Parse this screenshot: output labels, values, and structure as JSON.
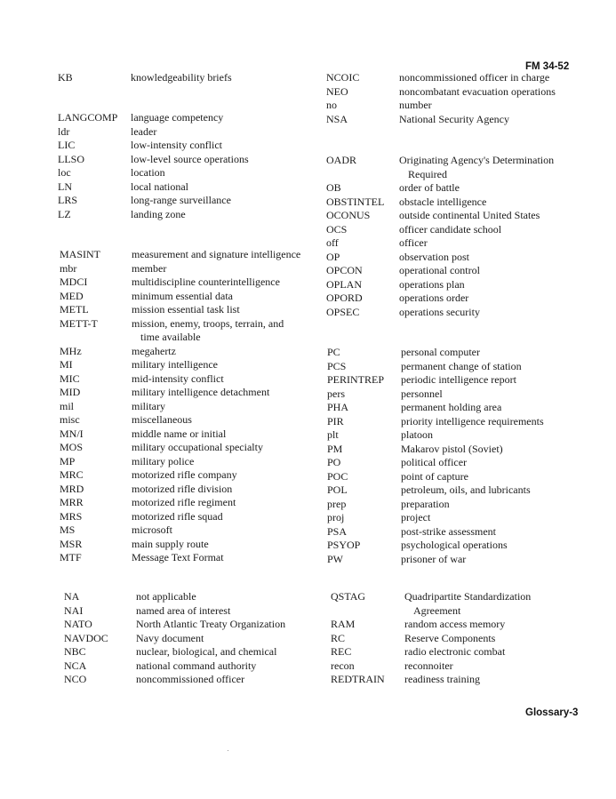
{
  "header": {
    "title": "FM 34-52"
  },
  "footer": {
    "page": "Glossary-3"
  },
  "blocks": [
    {
      "id": "k",
      "entries": [
        {
          "abbr": "KB",
          "def": "knowledgeability briefs"
        }
      ]
    },
    {
      "id": "l",
      "entries": [
        {
          "abbr": "LANGCOMP",
          "def": "language competency"
        },
        {
          "abbr": "ldr",
          "def": "leader"
        },
        {
          "abbr": "LIC",
          "def": "low-intensity conflict"
        },
        {
          "abbr": "LLSO",
          "def": "low-level source operations"
        },
        {
          "abbr": "loc",
          "def": "location"
        },
        {
          "abbr": "LN",
          "def": "local national"
        },
        {
          "abbr": "LRS",
          "def": "long-range surveillance"
        },
        {
          "abbr": "LZ",
          "def": "landing zone"
        }
      ]
    },
    {
      "id": "m",
      "entries": [
        {
          "abbr": "MASINT",
          "def": "measurement and signature intelligence"
        },
        {
          "abbr": "mbr",
          "def": "member"
        },
        {
          "abbr": "MDCI",
          "def": "multidiscipline counterintelligence"
        },
        {
          "abbr": "MED",
          "def": "minimum essential data"
        },
        {
          "abbr": "METL",
          "def": "mission essential task list"
        },
        {
          "abbr": "METT-T",
          "def": "mission, enemy, troops, terrain, and",
          "cont": "time available"
        },
        {
          "abbr": "MHz",
          "def": "megahertz"
        },
        {
          "abbr": "MI",
          "def": "military intelligence"
        },
        {
          "abbr": "MIC",
          "def": "mid-intensity conflict"
        },
        {
          "abbr": "MID",
          "def": "military intelligence detachment"
        },
        {
          "abbr": "mil",
          "def": "military"
        },
        {
          "abbr": "misc",
          "def": "miscellaneous"
        },
        {
          "abbr": "MN/I",
          "def": "middle name or initial"
        },
        {
          "abbr": "MOS",
          "def": "military occupational specialty"
        },
        {
          "abbr": "MP",
          "def": "military police"
        },
        {
          "abbr": "MRC",
          "def": "motorized rifle company"
        },
        {
          "abbr": "MRD",
          "def": "motorized rifle division"
        },
        {
          "abbr": "MRR",
          "def": "motorized rifle regiment"
        },
        {
          "abbr": "MRS",
          "def": "motorized rifle squad"
        },
        {
          "abbr": "MS",
          "def": "microsoft"
        },
        {
          "abbr": "MSR",
          "def": "main supply route"
        },
        {
          "abbr": "MTF",
          "def": "Message Text Format"
        }
      ]
    },
    {
      "id": "n1",
      "entries": [
        {
          "abbr": "NA",
          "def": "not applicable"
        },
        {
          "abbr": "NAI",
          "def": "named area of interest"
        },
        {
          "abbr": "NATO",
          "def": "North Atlantic Treaty Organization"
        },
        {
          "abbr": "NAVDOC",
          "def": "Navy document"
        },
        {
          "abbr": "NBC",
          "def": "nuclear, biological, and chemical"
        },
        {
          "abbr": "NCA",
          "def": "national command authority"
        },
        {
          "abbr": "NCO",
          "def": "noncommissioned officer"
        }
      ]
    },
    {
      "id": "n2",
      "entries": [
        {
          "abbr": "NCOIC",
          "def": "noncommissioned officer in charge"
        },
        {
          "abbr": "NEO",
          "def": "noncombatant evacuation operations"
        },
        {
          "abbr": "no",
          "def": "number"
        },
        {
          "abbr": "NSA",
          "def": "National Security Agency"
        }
      ]
    },
    {
      "id": "o",
      "entries": [
        {
          "abbr": "OADR",
          "def": "Originating Agency's Determination",
          "cont": "Required"
        },
        {
          "abbr": "OB",
          "def": "order of battle"
        },
        {
          "abbr": "OBSTINTEL",
          "def": "obstacle intelligence"
        },
        {
          "abbr": "OCONUS",
          "def": "outside continental United States"
        },
        {
          "abbr": "OCS",
          "def": "officer candidate school"
        },
        {
          "abbr": "off",
          "def": "officer"
        },
        {
          "abbr": "OP",
          "def": "observation post"
        },
        {
          "abbr": "OPCON",
          "def": "operational control"
        },
        {
          "abbr": "OPLAN",
          "def": "operations plan"
        },
        {
          "abbr": "OPORD",
          "def": "operations order"
        },
        {
          "abbr": "OPSEC",
          "def": "operations security"
        }
      ]
    },
    {
      "id": "p",
      "entries": [
        {
          "abbr": "PC",
          "def": "personal computer"
        },
        {
          "abbr": "PCS",
          "def": "permanent change of station"
        },
        {
          "abbr": "PERINTREP",
          "def": "periodic intelligence report"
        },
        {
          "abbr": "pers",
          "def": "personnel"
        },
        {
          "abbr": "PHA",
          "def": "permanent holding area"
        },
        {
          "abbr": "PIR",
          "def": "priority intelligence requirements"
        },
        {
          "abbr": "plt",
          "def": "platoon"
        },
        {
          "abbr": "PM",
          "def": "Makarov pistol (Soviet)"
        },
        {
          "abbr": "PO",
          "def": "political officer"
        },
        {
          "abbr": "POC",
          "def": "point of capture"
        },
        {
          "abbr": "POL",
          "def": "petroleum, oils, and lubricants"
        },
        {
          "abbr": "prep",
          "def": "preparation"
        },
        {
          "abbr": "proj",
          "def": "project"
        },
        {
          "abbr": "PSA",
          "def": "post-strike assessment"
        },
        {
          "abbr": "PSYOP",
          "def": "psychological operations"
        },
        {
          "abbr": "PW",
          "def": "prisoner of war"
        }
      ]
    },
    {
      "id": "qr",
      "entries": [
        {
          "abbr": "QSTAG",
          "def": "Quadripartite Standardization",
          "cont": "Agreement"
        },
        {
          "abbr": "RAM",
          "def": "random access memory"
        },
        {
          "abbr": "RC",
          "def": "Reserve Components"
        },
        {
          "abbr": "REC",
          "def": "radio electronic combat"
        },
        {
          "abbr": "recon",
          "def": "reconnoiter"
        },
        {
          "abbr": "REDTRAIN",
          "def": "readiness training"
        }
      ]
    }
  ]
}
